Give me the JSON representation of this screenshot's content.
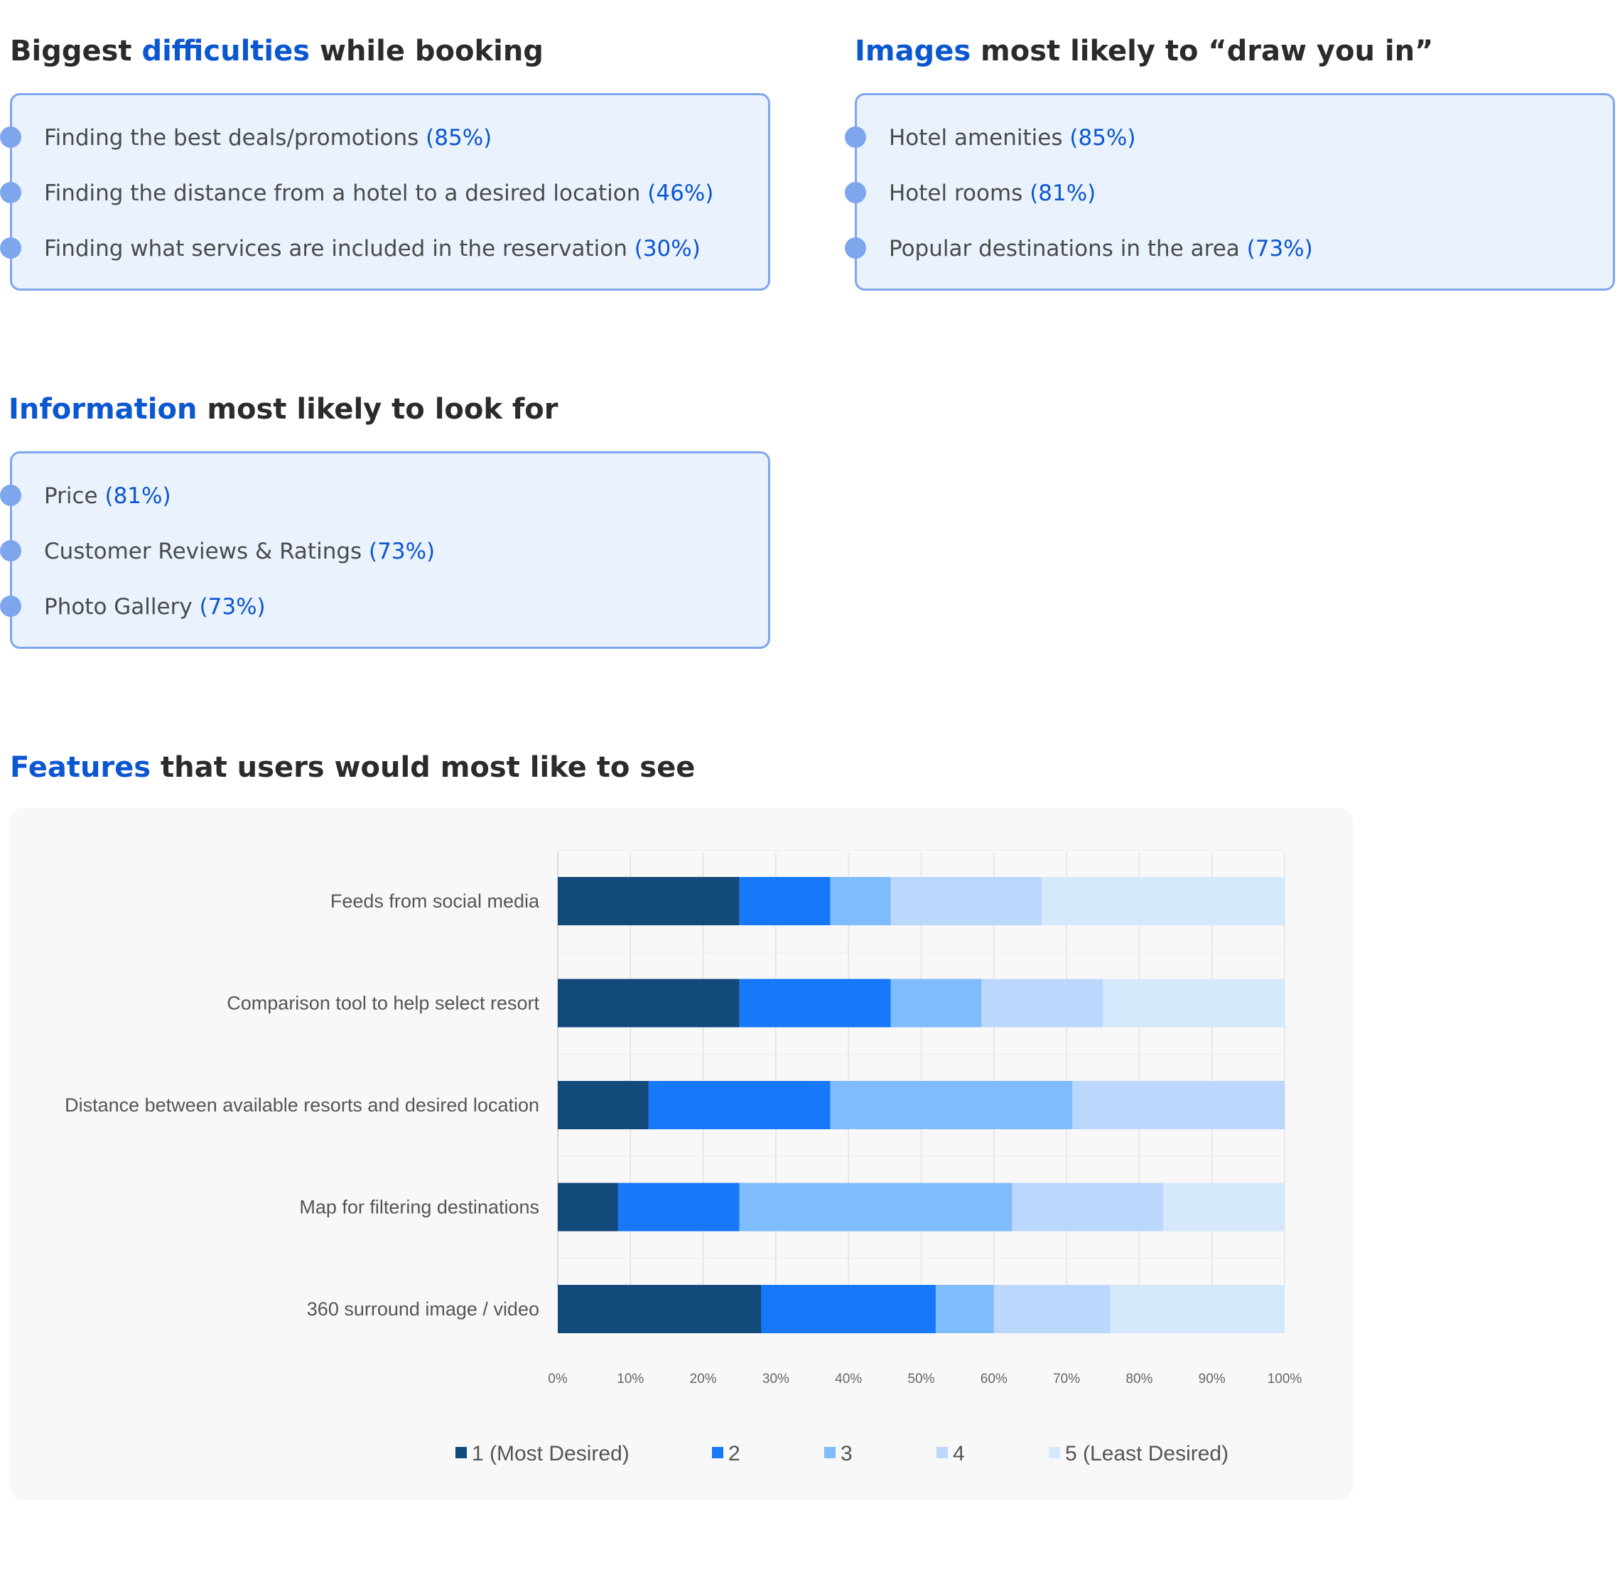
{
  "sections": {
    "difficulties": {
      "title_pre": "Biggest ",
      "title_accent": "difficulties",
      "title_post": " while booking",
      "items": [
        {
          "text": "Finding the best deals/promotions",
          "pct": "(85%)"
        },
        {
          "text": "Finding the distance from a hotel to a desired location",
          "pct": "(46%)"
        },
        {
          "text": "Finding what services are included in the reservation",
          "pct": "(30%)"
        }
      ]
    },
    "images": {
      "title_pre": "",
      "title_accent": "Images",
      "title_post": " most likely to “draw you in”",
      "items": [
        {
          "text": "Hotel amenities",
          "pct": "(85%)"
        },
        {
          "text": "Hotel rooms",
          "pct": "(81%)"
        },
        {
          "text": "Popular destinations in the area",
          "pct": "(73%)"
        }
      ]
    },
    "information": {
      "title_pre": "",
      "title_accent": "Information",
      "title_post": " most likely to look for",
      "items": [
        {
          "text": "Price",
          "pct": "(81%)"
        },
        {
          "text": "Customer Reviews & Ratings",
          "pct": "(73%)"
        },
        {
          "text": "Photo Gallery",
          "pct": "(73%)"
        }
      ]
    },
    "features": {
      "title_pre": "",
      "title_accent": "Features",
      "title_post": " that users would most like to see"
    }
  },
  "colors": {
    "accent": "#0b57d0",
    "card_bg": "#eaf2fd",
    "card_border": "#7ea6ec",
    "series": [
      "#134a7c",
      "#1778f9",
      "#7ebcfb",
      "#bbd7fc",
      "#d6e8fc"
    ]
  },
  "chart_data": {
    "type": "bar",
    "orientation": "horizontal",
    "stacked": "percent",
    "categories": [
      "Feeds from social media",
      "Comparison tool to help select resort",
      "Distance between available resorts and desired location",
      "Map for filtering destinations",
      "360 surround image / video"
    ],
    "series": [
      {
        "name": "1 (Most Desired)",
        "values": [
          25,
          25,
          12.5,
          8.3,
          28
        ]
      },
      {
        "name": "2",
        "values": [
          12.5,
          20.8,
          25,
          16.7,
          24
        ]
      },
      {
        "name": "3",
        "values": [
          8.3,
          12.5,
          33.3,
          37.5,
          8
        ]
      },
      {
        "name": "4",
        "values": [
          20.8,
          16.7,
          29.2,
          20.8,
          16
        ]
      },
      {
        "name": "5 (Least Desired)",
        "values": [
          33.4,
          25,
          0,
          16.7,
          24
        ]
      }
    ],
    "xticks": [
      "0%",
      "10%",
      "20%",
      "30%",
      "40%",
      "50%",
      "60%",
      "70%",
      "80%",
      "90%",
      "100%"
    ],
    "xlim": [
      0,
      100
    ],
    "grid": true,
    "legend": "bottom"
  }
}
